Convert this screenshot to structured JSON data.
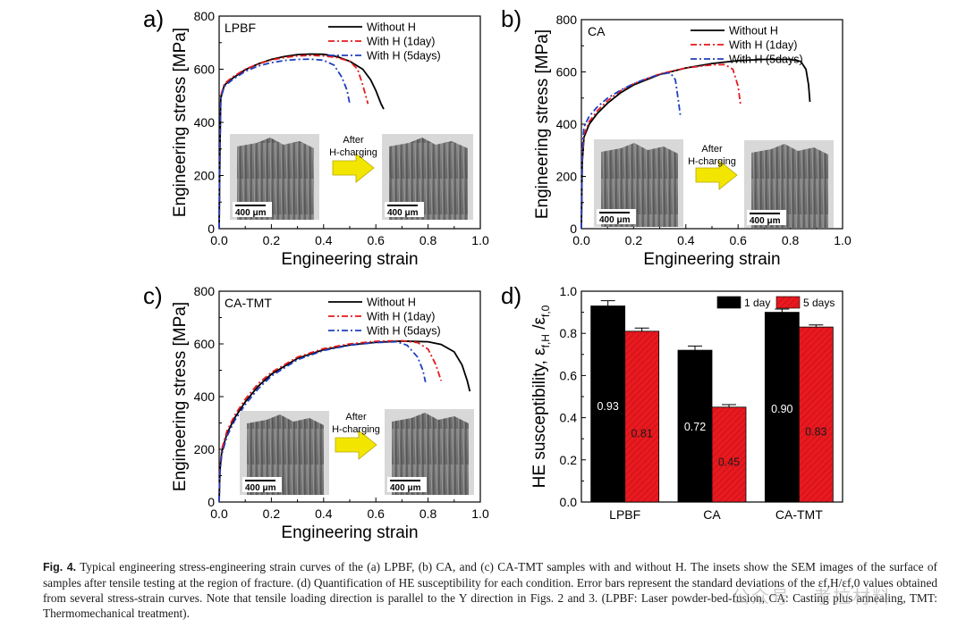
{
  "chart_data": [
    {
      "panel": "a)",
      "type": "line",
      "annotation": "LPBF",
      "xlabel": "Engineering strain",
      "ylabel": "Engineering stress [MPa]",
      "xlim": [
        0.0,
        1.0
      ],
      "ylim": [
        0,
        800
      ],
      "xticks": [
        "0.0",
        "0.2",
        "0.4",
        "0.6",
        "0.8",
        "1.0"
      ],
      "yticks": [
        "0",
        "200",
        "400",
        "600",
        "800"
      ],
      "legend": "top-right",
      "grid": false,
      "series": [
        {
          "name": "Without H",
          "color": "#000000",
          "dash": "solid",
          "x": [
            0,
            0.003,
            0.006,
            0.02,
            0.05,
            0.1,
            0.15,
            0.2,
            0.25,
            0.3,
            0.35,
            0.4,
            0.45,
            0.5,
            0.55,
            0.58,
            0.6,
            0.62,
            0.63
          ],
          "y": [
            0,
            300,
            490,
            540,
            565,
            598,
            620,
            637,
            648,
            655,
            657,
            656,
            648,
            630,
            600,
            560,
            520,
            470,
            450
          ]
        },
        {
          "name": "With H (1day)",
          "color": "#e41a1c",
          "dash": "dashdot",
          "x": [
            0,
            0.003,
            0.006,
            0.02,
            0.05,
            0.1,
            0.15,
            0.2,
            0.25,
            0.3,
            0.35,
            0.4,
            0.45,
            0.5,
            0.53,
            0.55,
            0.57
          ],
          "y": [
            0,
            300,
            500,
            545,
            570,
            600,
            620,
            635,
            644,
            650,
            652,
            650,
            644,
            630,
            600,
            540,
            470
          ]
        },
        {
          "name": "With H (5days)",
          "color": "#1f3fbf",
          "dash": "dashdot",
          "x": [
            0,
            0.003,
            0.006,
            0.02,
            0.05,
            0.1,
            0.15,
            0.2,
            0.25,
            0.3,
            0.35,
            0.4,
            0.44,
            0.47,
            0.49,
            0.5
          ],
          "y": [
            0,
            300,
            490,
            535,
            560,
            592,
            612,
            625,
            633,
            637,
            638,
            634,
            615,
            570,
            520,
            470
          ]
        }
      ]
    },
    {
      "panel": "b)",
      "type": "line",
      "annotation": "CA",
      "xlabel": "Engineering strain",
      "ylabel": "Engineering stress [MPa]",
      "xlim": [
        0.0,
        1.0
      ],
      "ylim": [
        0,
        800
      ],
      "xticks": [
        "0.0",
        "0.2",
        "0.4",
        "0.6",
        "0.8",
        "1.0"
      ],
      "yticks": [
        "0",
        "200",
        "400",
        "600",
        "800"
      ],
      "legend": "top-right",
      "grid": false,
      "series": [
        {
          "name": "Without H",
          "color": "#000000",
          "dash": "solid",
          "x": [
            0,
            0.003,
            0.01,
            0.03,
            0.06,
            0.1,
            0.15,
            0.2,
            0.3,
            0.4,
            0.5,
            0.6,
            0.7,
            0.8,
            0.84,
            0.86,
            0.87,
            0.875
          ],
          "y": [
            0,
            250,
            350,
            400,
            440,
            480,
            520,
            550,
            590,
            615,
            632,
            643,
            648,
            648,
            640,
            610,
            550,
            485
          ]
        },
        {
          "name": "With H (1day)",
          "color": "#e41a1c",
          "dash": "dashdot",
          "x": [
            0,
            0.003,
            0.01,
            0.03,
            0.06,
            0.1,
            0.15,
            0.2,
            0.3,
            0.4,
            0.5,
            0.55,
            0.58,
            0.6,
            0.61
          ],
          "y": [
            0,
            260,
            360,
            410,
            450,
            490,
            528,
            555,
            592,
            615,
            627,
            628,
            610,
            545,
            470
          ]
        },
        {
          "name": "With H (5days)",
          "color": "#1f3fbf",
          "dash": "dashdot",
          "x": [
            0,
            0.003,
            0.01,
            0.03,
            0.06,
            0.1,
            0.15,
            0.2,
            0.25,
            0.3,
            0.34,
            0.36,
            0.37,
            0.38
          ],
          "y": [
            0,
            300,
            390,
            430,
            465,
            500,
            530,
            555,
            575,
            590,
            597,
            570,
            500,
            425
          ]
        }
      ]
    },
    {
      "panel": "c)",
      "type": "line",
      "annotation": "CA-TMT",
      "xlabel": "Engineering strain",
      "ylabel": "Engineering stress [MPa]",
      "xlim": [
        0.0,
        1.0
      ],
      "ylim": [
        0,
        800
      ],
      "xticks": [
        "0.0",
        "0.2",
        "0.4",
        "0.6",
        "0.8",
        "1.0"
      ],
      "yticks": [
        "0",
        "200",
        "400",
        "600",
        "800"
      ],
      "legend": "top-right",
      "grid": false,
      "series": [
        {
          "name": "Without H",
          "color": "#000000",
          "dash": "solid",
          "x": [
            0,
            0.003,
            0.01,
            0.03,
            0.06,
            0.1,
            0.15,
            0.2,
            0.3,
            0.4,
            0.5,
            0.6,
            0.7,
            0.8,
            0.85,
            0.9,
            0.93,
            0.95,
            0.96
          ],
          "y": [
            0,
            120,
            190,
            260,
            320,
            380,
            440,
            485,
            545,
            578,
            596,
            606,
            611,
            608,
            598,
            570,
            520,
            460,
            420
          ]
        },
        {
          "name": "With H (1day)",
          "color": "#e41a1c",
          "dash": "dashdot",
          "x": [
            0,
            0.003,
            0.01,
            0.03,
            0.06,
            0.1,
            0.15,
            0.2,
            0.3,
            0.4,
            0.5,
            0.6,
            0.7,
            0.76,
            0.8,
            0.83,
            0.85
          ],
          "y": [
            0,
            130,
            200,
            270,
            330,
            390,
            450,
            492,
            550,
            582,
            600,
            610,
            612,
            605,
            580,
            520,
            460
          ]
        },
        {
          "name": "With H (5days)",
          "color": "#1f3fbf",
          "dash": "dashdot",
          "x": [
            0,
            0.003,
            0.01,
            0.03,
            0.06,
            0.1,
            0.15,
            0.2,
            0.3,
            0.4,
            0.5,
            0.6,
            0.68,
            0.72,
            0.76,
            0.78,
            0.79
          ],
          "y": [
            0,
            110,
            180,
            250,
            310,
            370,
            430,
            478,
            540,
            575,
            595,
            605,
            608,
            595,
            550,
            500,
            455
          ]
        }
      ]
    },
    {
      "panel": "d)",
      "type": "bar",
      "categories": [
        "LPBF",
        "CA",
        "CA-TMT"
      ],
      "ylabel": "HE susceptibility, ε f,H / ε f,0",
      "ylim": [
        0.0,
        1.0
      ],
      "yticks": [
        "0.0",
        "0.2",
        "0.4",
        "0.6",
        "0.8",
        "1.0"
      ],
      "legend": "top-right",
      "grid": false,
      "series": [
        {
          "name": "1 day",
          "color": "#000000",
          "values": [
            0.93,
            0.72,
            0.9
          ],
          "errors": [
            0.025,
            0.02,
            0.015
          ],
          "labels": [
            "0.93",
            "0.72",
            "0.90"
          ]
        },
        {
          "name": "5 days",
          "color": "#e8191f",
          "values": [
            0.81,
            0.45,
            0.83
          ],
          "errors": [
            0.015,
            0.012,
            0.01
          ],
          "labels": [
            "0.81",
            "0.45",
            "0.83"
          ]
        }
      ]
    }
  ],
  "insets": {
    "scale_bar": "400 μm",
    "arrow_label_1": "After",
    "arrow_label_2": "H-charging"
  },
  "caption": {
    "fig_label": "Fig. 4.",
    "line1": "Typical engineering stress-engineering strain curves of the (a) LPBF, (b) CA, and (c) CA-TMT samples with and without H. The insets show the SEM images of",
    "line2": "the surface of samples after tensile testing at the region of fracture. (d) Quantification of HE susceptibility for each condition. Error bars represent the standard",
    "line3": "deviations of the εf,H/εf,0 values obtained from several stress-strain curves. Note that tensile loading direction is parallel to the Y direction in Figs. 2 and 3. (LPBF:",
    "line4": "Laser powder-bed-fusion, CA: Casting plus annealing, TMT: Thermomechanical treatment)."
  },
  "watermark": "公众号 · 孝拉材料"
}
